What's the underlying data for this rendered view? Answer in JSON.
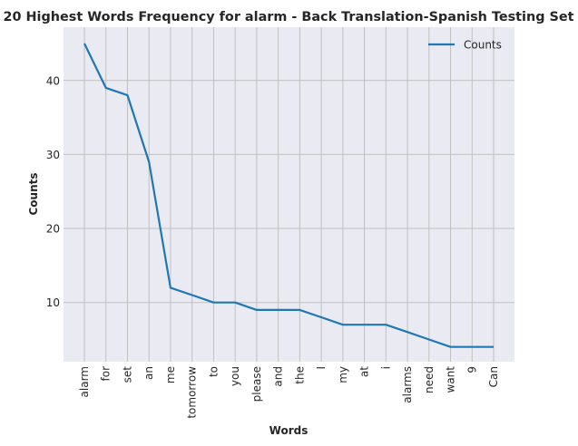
{
  "chart_data": {
    "type": "line",
    "title": "20 Highest Words Frequency for alarm - Back Translation-Spanish Testing Set",
    "xlabel": "Words",
    "ylabel": "Counts",
    "categories": [
      "alarm",
      "for",
      "set",
      "an",
      "me",
      "tomorrow",
      "to",
      "you",
      "please",
      "and",
      "the",
      "I",
      "my",
      "at",
      "i",
      "alarms",
      "need",
      "want",
      "9",
      "Can"
    ],
    "series": [
      {
        "name": "Counts",
        "values": [
          45,
          39,
          38,
          29,
          12,
          11,
          10,
          10,
          9,
          9,
          9,
          8,
          7,
          7,
          7,
          6,
          5,
          4,
          4,
          4
        ]
      }
    ],
    "yticks": [
      10,
      20,
      30,
      40
    ],
    "ylim": [
      2,
      47.2
    ],
    "grid": true,
    "legend_position": "top-right",
    "colors": {
      "line": "#1f77b4",
      "background": "#eaeaf2",
      "grid": "#c0c0c0"
    }
  }
}
